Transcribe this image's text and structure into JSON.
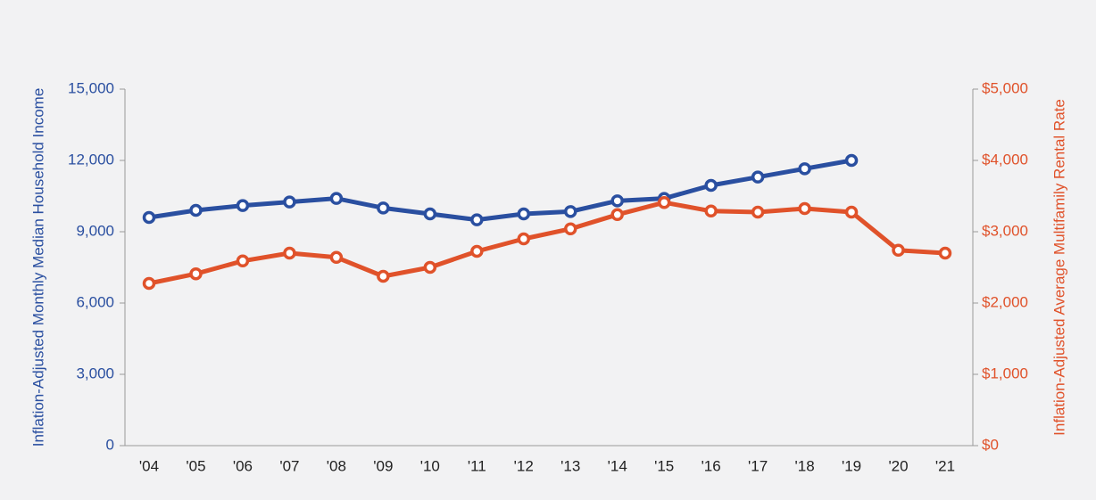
{
  "chart_data": {
    "type": "line",
    "categories": [
      "'04",
      "'05",
      "'06",
      "'07",
      "'08",
      "'09",
      "'10",
      "'11",
      "'12",
      "'13",
      "'14",
      "'15",
      "'16",
      "'17",
      "'18",
      "'19",
      "'20",
      "'21"
    ],
    "y_label": "Inflation-Adjusted Monthly Median Household Income",
    "y2_label": "Inflation-Adjusted Average Multifamily Rental Rate",
    "ylim": [
      0,
      15000
    ],
    "yticks": [
      0,
      {
        "value": 3000,
        "label": "3,000"
      },
      {
        "value": 6000,
        "label": "6,000"
      },
      {
        "value": 9000,
        "label": "9,000"
      },
      {
        "value": 12000,
        "label": "12,000"
      },
      {
        "value": 15000,
        "label": "15,000"
      }
    ],
    "y2lim": [
      0,
      5000
    ],
    "y2ticks": [
      {
        "value": 0,
        "label": "$0"
      },
      {
        "value": 1000,
        "label": "$1,000"
      },
      {
        "value": 2000,
        "label": "$2,000"
      },
      {
        "value": 3000,
        "label": "$3,000"
      },
      {
        "value": 4000,
        "label": "$4,000"
      },
      {
        "value": 5000,
        "label": "$5,000"
      }
    ],
    "series": [
      {
        "color": "#2a4fa0",
        "values": [
          9600,
          9900,
          10100,
          10250,
          10400,
          10000,
          9750,
          9500,
          9750,
          9850,
          10300,
          10400,
          10950,
          11300,
          11650,
          12000,
          null,
          null
        ]
      },
      {
        "color": "#e0522a",
        "axis": "y2",
        "values": [
          2275,
          2410,
          2590,
          2700,
          2640,
          2375,
          2500,
          2725,
          2900,
          3040,
          3240,
          3410,
          3290,
          3275,
          3325,
          3275,
          2740,
          2700
        ]
      }
    ]
  }
}
